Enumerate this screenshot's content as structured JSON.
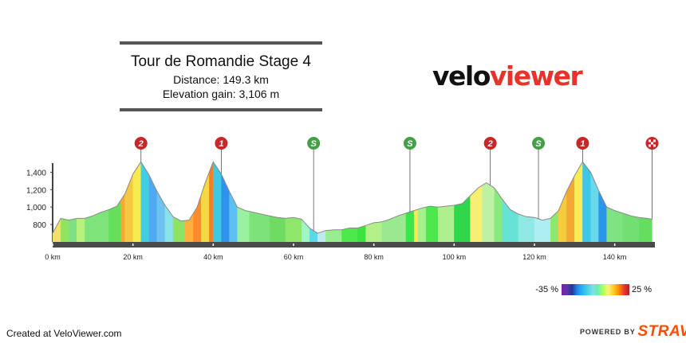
{
  "header": {
    "title": "Tour de Romandie Stage 4",
    "distance": "Distance: 149.3 km",
    "elevation": "Elevation gain: 3,106 m"
  },
  "logo": {
    "part1": "velo",
    "part2": "viewer"
  },
  "footer": {
    "created": "Created at VeloViewer.com",
    "powered": "POWERED BY",
    "strava": "STRAVA"
  },
  "legend": {
    "min": "-35 %",
    "max": "25 %"
  },
  "colors": {
    "brand_red": "#e8322a",
    "strava_orange": "#fc4c02"
  },
  "chart_data": {
    "type": "area",
    "x_unit": "km",
    "xlim": [
      0,
      150
    ],
    "ylim": [
      600,
      1550
    ],
    "x_ticks": [
      0,
      20,
      40,
      60,
      80,
      100,
      120,
      140
    ],
    "x_tick_labels": [
      "0 km",
      "20 km",
      "40 km",
      "60 km",
      "80 km",
      "100 km",
      "120 km",
      "140 km"
    ],
    "y_ticks": [
      800,
      1000,
      1200,
      1400
    ],
    "y_tick_labels": [
      "800",
      "1,000",
      "1,200",
      "1,400"
    ],
    "profile": [
      [
        0,
        700
      ],
      [
        2,
        870
      ],
      [
        4,
        850
      ],
      [
        6,
        870
      ],
      [
        8,
        870
      ],
      [
        10,
        900
      ],
      [
        12,
        940
      ],
      [
        14,
        970
      ],
      [
        16,
        1010
      ],
      [
        18,
        1150
      ],
      [
        20,
        1380
      ],
      [
        22,
        1520
      ],
      [
        24,
        1370
      ],
      [
        26,
        1180
      ],
      [
        28,
        1020
      ],
      [
        30,
        890
      ],
      [
        32,
        840
      ],
      [
        34,
        850
      ],
      [
        36,
        1000
      ],
      [
        38,
        1280
      ],
      [
        40,
        1520
      ],
      [
        42,
        1380
      ],
      [
        44,
        1180
      ],
      [
        46,
        1000
      ],
      [
        48,
        960
      ],
      [
        50,
        940
      ],
      [
        52,
        920
      ],
      [
        54,
        900
      ],
      [
        56,
        880
      ],
      [
        58,
        870
      ],
      [
        60,
        880
      ],
      [
        62,
        860
      ],
      [
        64,
        760
      ],
      [
        66,
        700
      ],
      [
        68,
        730
      ],
      [
        70,
        740
      ],
      [
        72,
        740
      ],
      [
        74,
        760
      ],
      [
        76,
        760
      ],
      [
        78,
        790
      ],
      [
        80,
        820
      ],
      [
        82,
        830
      ],
      [
        84,
        860
      ],
      [
        86,
        900
      ],
      [
        88,
        930
      ],
      [
        90,
        960
      ],
      [
        92,
        990
      ],
      [
        94,
        1010
      ],
      [
        96,
        1000
      ],
      [
        98,
        1010
      ],
      [
        100,
        1020
      ],
      [
        102,
        1040
      ],
      [
        104,
        1130
      ],
      [
        106,
        1220
      ],
      [
        108,
        1280
      ],
      [
        110,
        1220
      ],
      [
        112,
        1090
      ],
      [
        114,
        970
      ],
      [
        116,
        920
      ],
      [
        118,
        890
      ],
      [
        120,
        880
      ],
      [
        122,
        850
      ],
      [
        124,
        870
      ],
      [
        126,
        960
      ],
      [
        128,
        1180
      ],
      [
        130,
        1360
      ],
      [
        132,
        1520
      ],
      [
        134,
        1400
      ],
      [
        136,
        1190
      ],
      [
        138,
        1000
      ],
      [
        140,
        960
      ],
      [
        142,
        930
      ],
      [
        144,
        900
      ],
      [
        146,
        880
      ],
      [
        148,
        870
      ],
      [
        149.3,
        860
      ]
    ],
    "gradient_bands": [
      [
        0,
        "#f0e06a"
      ],
      [
        2,
        "#8ee65e"
      ],
      [
        4,
        "#7de084"
      ],
      [
        6,
        "#b8f07c"
      ],
      [
        8,
        "#7ee37a"
      ],
      [
        10,
        "#7ee378"
      ],
      [
        14,
        "#62e05a"
      ],
      [
        17,
        "#f5a833"
      ],
      [
        18,
        "#f4c840"
      ],
      [
        20,
        "#f7ea4f"
      ],
      [
        22,
        "#3fcfe0"
      ],
      [
        24,
        "#4fa8f0"
      ],
      [
        26,
        "#6ec2ee"
      ],
      [
        28,
        "#8ae2e9"
      ],
      [
        30,
        "#8ee365"
      ],
      [
        33,
        "#ffb03a"
      ],
      [
        35,
        "#fd8a2c"
      ],
      [
        37,
        "#f6d843"
      ],
      [
        39,
        "#ef7e2d"
      ],
      [
        40,
        "#3ec9e3"
      ],
      [
        42,
        "#2d93ec"
      ],
      [
        44,
        "#5ec0f2"
      ],
      [
        46,
        "#98f0a0"
      ],
      [
        49,
        "#7ee27a"
      ],
      [
        54,
        "#6edc62"
      ],
      [
        58,
        "#8ee66a"
      ],
      [
        62,
        "#9ef6c2"
      ],
      [
        64,
        "#5bd8e9"
      ],
      [
        66,
        "#bfe9f0"
      ],
      [
        68,
        "#98ee8f"
      ],
      [
        72,
        "#4ce84c"
      ],
      [
        76,
        "#3be33e"
      ],
      [
        78,
        "#b3f08a"
      ],
      [
        82,
        "#9ae990"
      ],
      [
        88,
        "#3be64a"
      ],
      [
        90,
        "#f3ec5a"
      ],
      [
        91,
        "#a3f18d"
      ],
      [
        93,
        "#4fe84c"
      ],
      [
        96,
        "#aef08f"
      ],
      [
        100,
        "#2fd84a"
      ],
      [
        104,
        "#f6ef72"
      ],
      [
        107,
        "#bef2a2"
      ],
      [
        110,
        "#89e97e"
      ],
      [
        112,
        "#67e2d6"
      ],
      [
        116,
        "#8fe8e2"
      ],
      [
        120,
        "#aeeef0"
      ],
      [
        124,
        "#8ee869"
      ],
      [
        126,
        "#f6cb3c"
      ],
      [
        128,
        "#f4a733"
      ],
      [
        130,
        "#f7ec55"
      ],
      [
        132,
        "#3ac8e5"
      ],
      [
        134,
        "#6ad8ec"
      ],
      [
        136,
        "#2a95ea"
      ],
      [
        138,
        "#7ee380"
      ],
      [
        142,
        "#73df72"
      ],
      [
        146,
        "#64dd60"
      ]
    ],
    "markers": [
      {
        "km": 22,
        "label": "2",
        "kind": "climb"
      },
      {
        "km": 42,
        "label": "1",
        "kind": "climb"
      },
      {
        "km": 65,
        "label": "S",
        "kind": "sprint"
      },
      {
        "km": 89,
        "label": "S",
        "kind": "sprint"
      },
      {
        "km": 109,
        "label": "2",
        "kind": "climb"
      },
      {
        "km": 121,
        "label": "S",
        "kind": "sprint"
      },
      {
        "km": 132,
        "label": "1",
        "kind": "climb"
      },
      {
        "km": 149.3,
        "label": "",
        "kind": "finish"
      }
    ]
  }
}
